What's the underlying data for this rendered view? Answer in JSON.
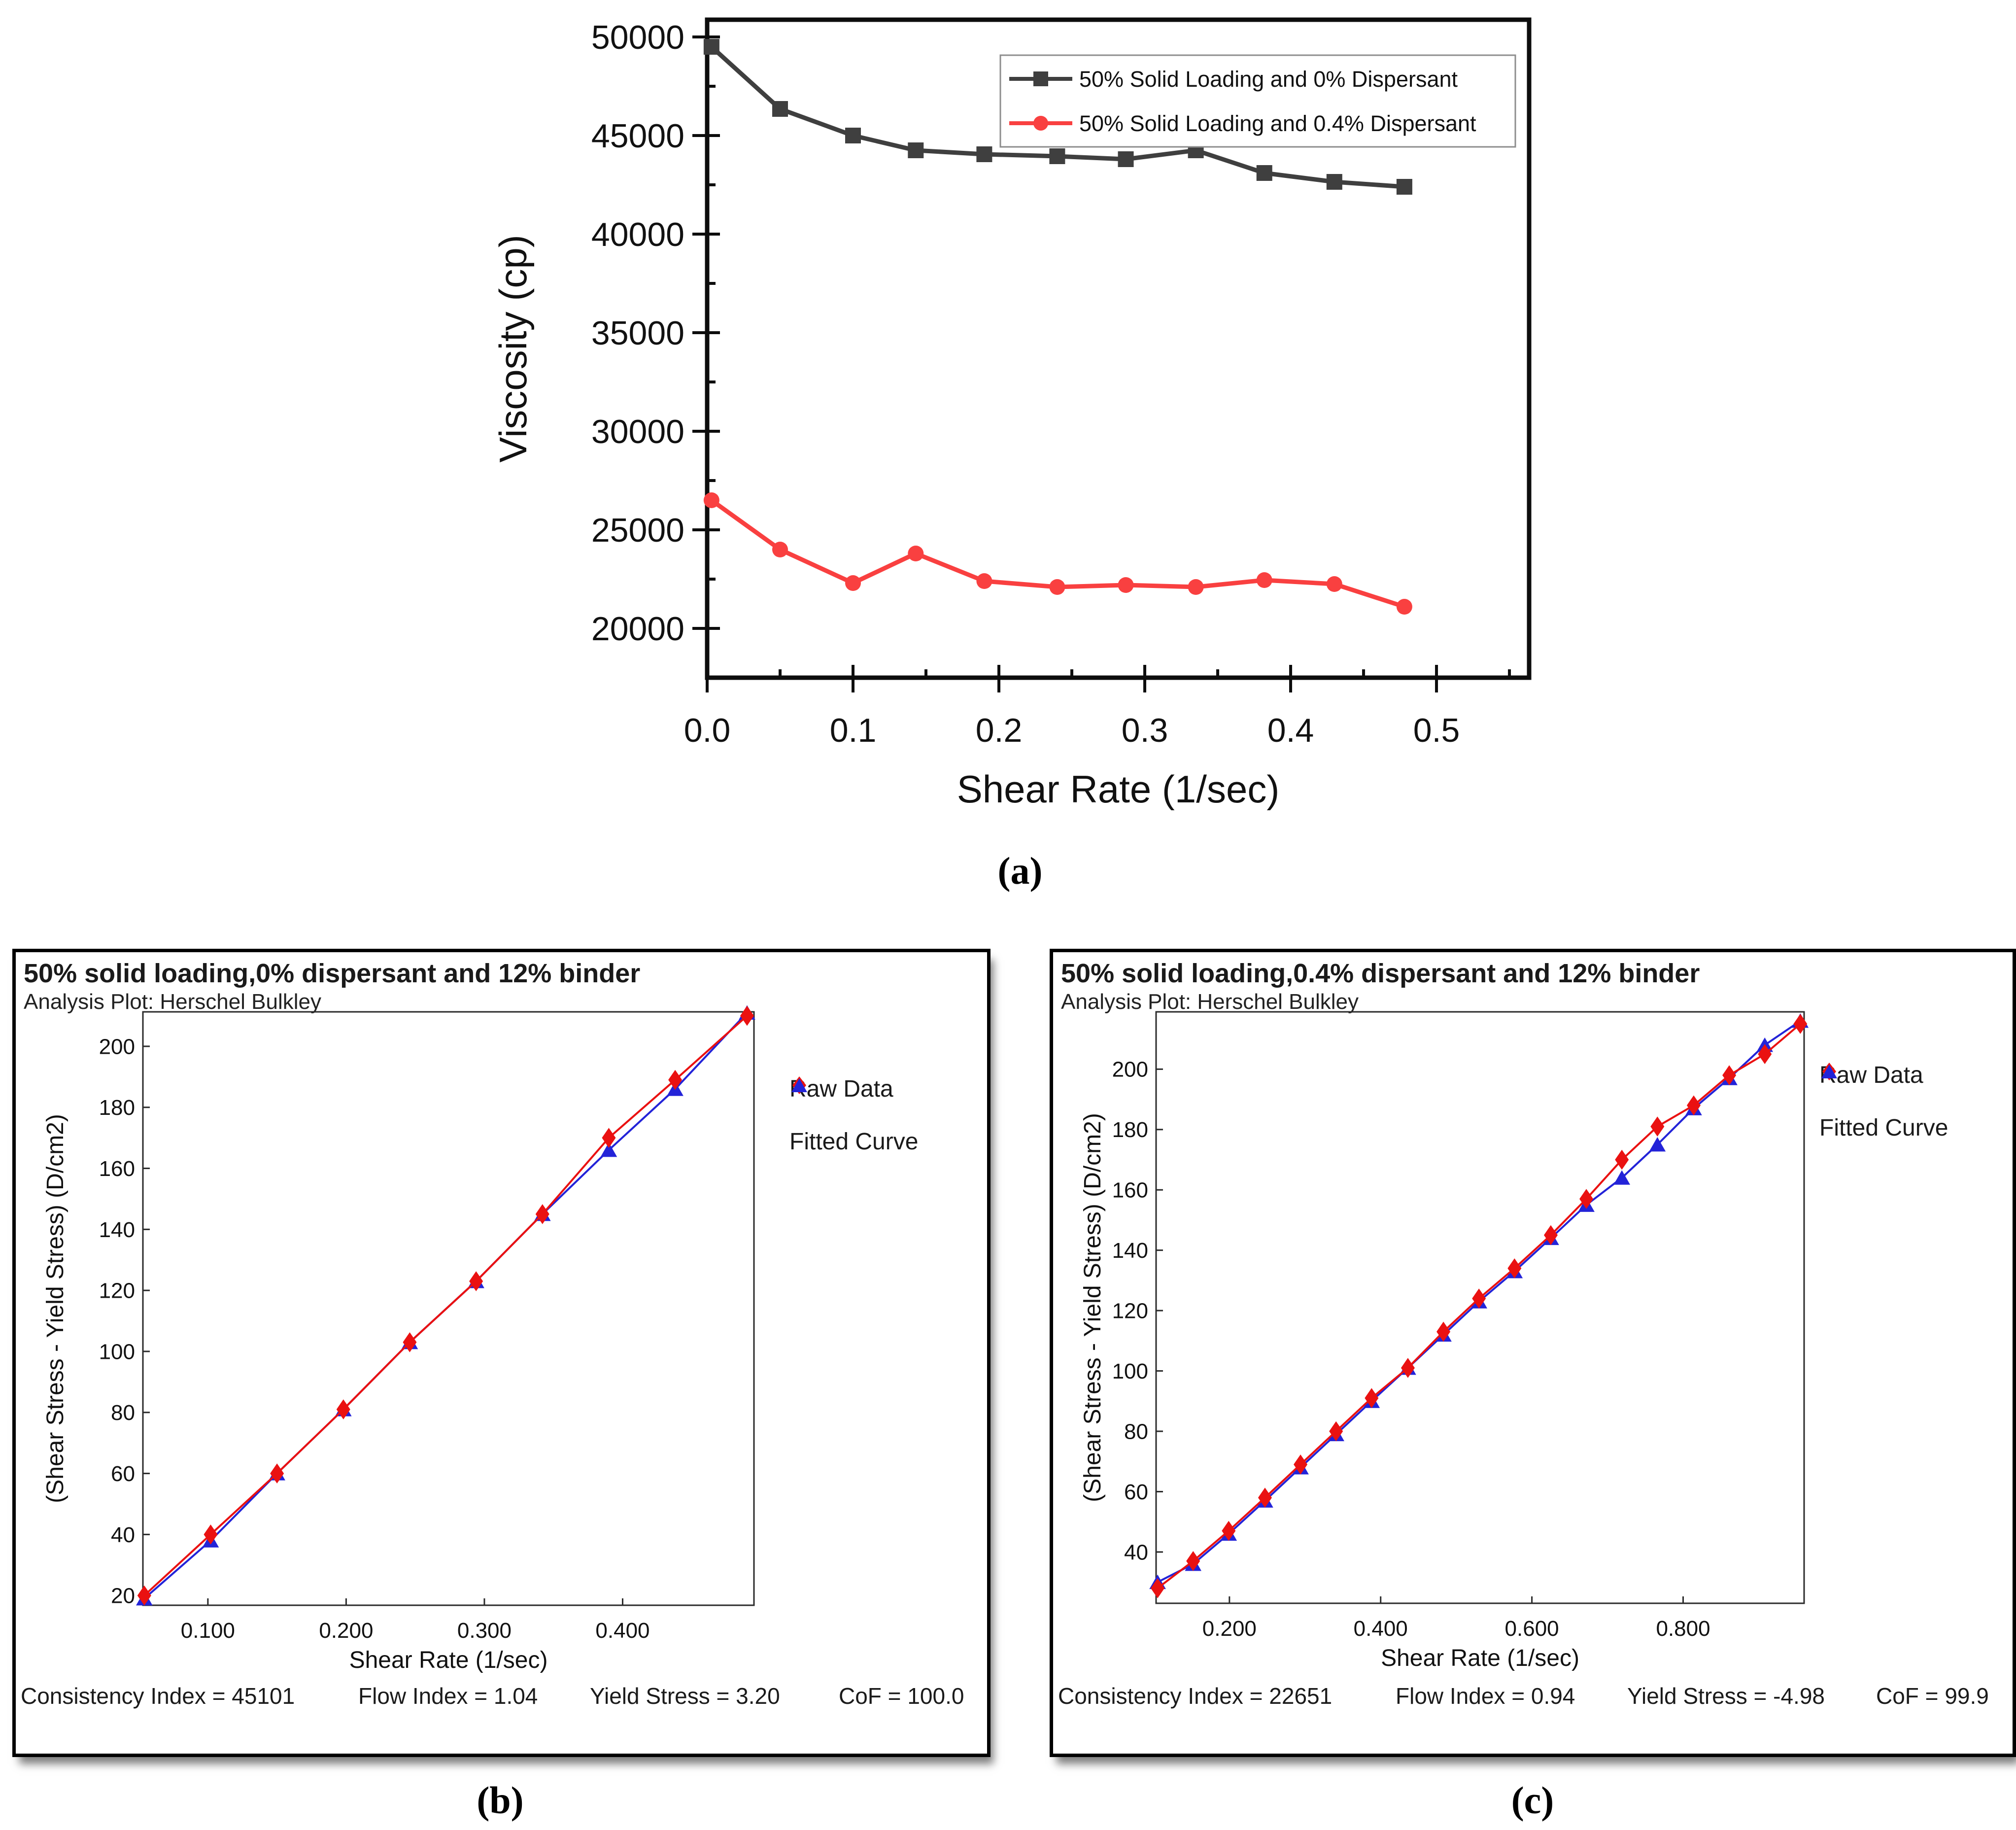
{
  "figure": {
    "captions": {
      "a": "(a)",
      "b": "(b)",
      "c": "(c)"
    }
  },
  "chart_data": [
    {
      "id": "a",
      "type": "line",
      "title": "",
      "xlabel": "Shear Rate (1/sec)",
      "ylabel": "Viscosity (cp)",
      "xlim": [
        0,
        0.5635
      ],
      "ylim": [
        17500,
        50875
      ],
      "xticks": [
        0,
        0.1,
        0.2,
        0.3,
        0.4,
        0.5
      ],
      "xtick_labels": [
        "0.0",
        "0.1",
        "0.2",
        "0.3",
        "0.4",
        "0.5"
      ],
      "xminor": [
        0.05,
        0.15,
        0.25,
        0.35,
        0.45,
        0.55
      ],
      "yticks": [
        20000,
        25000,
        30000,
        35000,
        40000,
        45000,
        50000
      ],
      "ytick_labels": [
        "20000",
        "25000",
        "30000",
        "35000",
        "40000",
        "45000",
        "50000"
      ],
      "yminor": [
        22500,
        27500,
        32500,
        37500,
        42500,
        47500
      ],
      "grid": false,
      "legend_position": "top-right",
      "series": [
        {
          "name": "50% Solid Loading and 0% Dispersant",
          "color": "#3f3f3f",
          "marker": "square",
          "x": [
            0.003,
            0.05,
            0.1,
            0.143,
            0.19,
            0.24,
            0.287,
            0.335,
            0.382,
            0.43,
            0.478
          ],
          "y": [
            49500,
            46350,
            45000,
            44250,
            44050,
            43950,
            43800,
            44250,
            43100,
            42650,
            42400
          ]
        },
        {
          "name": "50% Solid Loading and 0.4% Dispersant",
          "color": "#f94040",
          "marker": "circle",
          "x": [
            0.003,
            0.05,
            0.1,
            0.143,
            0.19,
            0.24,
            0.287,
            0.335,
            0.382,
            0.43,
            0.478
          ],
          "y": [
            26500,
            24000,
            22300,
            23800,
            22400,
            22100,
            22200,
            22100,
            22450,
            22250,
            21100
          ]
        }
      ]
    },
    {
      "id": "b",
      "type": "scatter-line",
      "title": "50% solid loading,0% dispersant and 12% binder",
      "subtitle": "Analysis Plot: Herschel Bulkley",
      "xlabel": "Shear Rate (1/sec)",
      "ylabel": "(Shear Stress - Yield Stress) (D/cm2)",
      "stats_segments": [
        "Consistency Index = 45101",
        "Flow Index = 1.04",
        "Yield Stress = 3.20",
        "CoF = 100.0"
      ],
      "xlim": [
        0.053,
        0.495
      ],
      "ylim": [
        16.8,
        211.3
      ],
      "xticks": [
        0.1,
        0.2,
        0.3,
        0.4
      ],
      "xtick_labels": [
        "0.100",
        "0.200",
        "0.300",
        "0.400"
      ],
      "yticks": [
        20,
        40,
        60,
        80,
        100,
        120,
        140,
        160,
        180,
        200
      ],
      "ytick_labels": [
        "20",
        "40",
        "60",
        "80",
        "100",
        "120",
        "140",
        "160",
        "180",
        "200"
      ],
      "grid": false,
      "legend_position": "right",
      "series": [
        {
          "name": "Fitted Curve",
          "color": "#2323d8",
          "marker": "triangle",
          "x": [
            0.054,
            0.102,
            0.15,
            0.198,
            0.246,
            0.294,
            0.342,
            0.39,
            0.438,
            0.49
          ],
          "y": [
            19,
            38,
            60,
            81,
            103,
            123,
            145,
            166,
            186,
            211
          ]
        },
        {
          "name": "Raw Data",
          "color": "#ea1111",
          "marker": "diamond",
          "x": [
            0.054,
            0.102,
            0.15,
            0.198,
            0.246,
            0.294,
            0.342,
            0.39,
            0.438,
            0.49
          ],
          "y": [
            20,
            40,
            60,
            81,
            103,
            123,
            145,
            170,
            189,
            210
          ]
        }
      ]
    },
    {
      "id": "c",
      "type": "scatter-line",
      "title": "50% solid loading,0.4% dispersant and 12% binder",
      "subtitle": "Analysis Plot: Herschel Bulkley",
      "xlabel": "Shear Rate (1/sec)",
      "ylabel": "(Shear Stress - Yield Stress) (D/cm2)",
      "stats_segments": [
        "Consistency Index = 22651",
        "Flow Index = 0.94",
        "Yield Stress = -4.98",
        "CoF = 99.9"
      ],
      "xlim": [
        0.103,
        0.96
      ],
      "ylim": [
        23,
        219
      ],
      "xticks": [
        0.2,
        0.4,
        0.6,
        0.8
      ],
      "xtick_labels": [
        "0.200",
        "0.400",
        "0.600",
        "0.800"
      ],
      "yticks": [
        40,
        60,
        80,
        100,
        120,
        140,
        160,
        180,
        200
      ],
      "ytick_labels": [
        "40",
        "60",
        "80",
        "100",
        "120",
        "140",
        "160",
        "180",
        "200"
      ],
      "grid": false,
      "legend_position": "right",
      "series": [
        {
          "name": "Fitted Curve",
          "color": "#2323d8",
          "marker": "triangle",
          "x": [
            0.105,
            0.152,
            0.199,
            0.247,
            0.294,
            0.341,
            0.388,
            0.436,
            0.483,
            0.53,
            0.577,
            0.625,
            0.672,
            0.719,
            0.766,
            0.814,
            0.861,
            0.908,
            0.955
          ],
          "y": [
            30,
            36,
            46,
            57,
            68,
            79,
            90,
            101,
            112,
            123,
            133,
            144,
            155,
            164,
            175,
            187,
            197,
            208,
            216
          ]
        },
        {
          "name": "Raw Data",
          "color": "#ea1111",
          "marker": "diamond",
          "x": [
            0.105,
            0.152,
            0.199,
            0.247,
            0.294,
            0.341,
            0.388,
            0.436,
            0.483,
            0.53,
            0.577,
            0.625,
            0.672,
            0.719,
            0.766,
            0.814,
            0.861,
            0.908,
            0.955
          ],
          "y": [
            28,
            37,
            47,
            58,
            69,
            80,
            91,
            101,
            113,
            124,
            134,
            145,
            157,
            170,
            181,
            188,
            198,
            205,
            215
          ]
        }
      ]
    }
  ]
}
